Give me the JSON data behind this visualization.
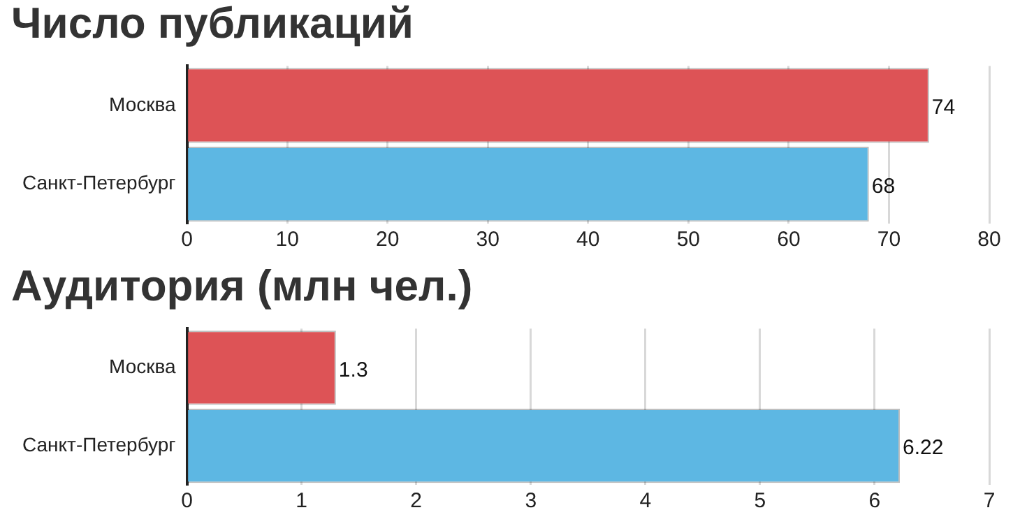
{
  "chart_data": [
    {
      "type": "bar",
      "title": "Число публикаций",
      "orientation": "horizontal",
      "categories": [
        "Москва",
        "Санкт-Петербург"
      ],
      "values": [
        74,
        68
      ],
      "colors": [
        "#dd5356",
        "#5db7e3"
      ],
      "xlim": [
        0,
        80
      ],
      "xticks": [
        0,
        10,
        20,
        30,
        40,
        50,
        60,
        70,
        80
      ],
      "grid": "x",
      "data_labels": true
    },
    {
      "type": "bar",
      "title": "Аудитория (млн чел.)",
      "orientation": "horizontal",
      "categories": [
        "Москва",
        "Санкт-Петербург"
      ],
      "values": [
        1.3,
        6.22
      ],
      "colors": [
        "#dd5356",
        "#5db7e3"
      ],
      "xlim": [
        0,
        7
      ],
      "xticks": [
        0,
        1,
        2,
        3,
        4,
        5,
        6,
        7
      ],
      "grid": "x",
      "data_labels": true
    }
  ]
}
